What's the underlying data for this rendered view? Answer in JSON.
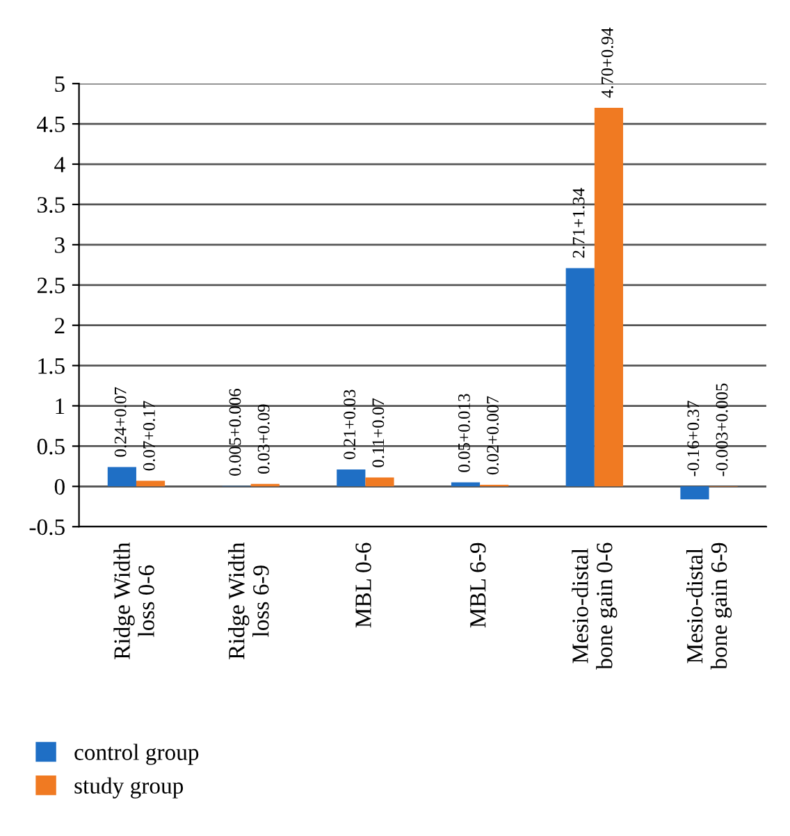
{
  "chart_data": {
    "type": "bar",
    "categories": [
      "Ridge Width\nloss 0-6",
      "Ridge Width\nloss 6-9",
      "MBL 0-6",
      "MBL 6-9",
      "Mesio-distal\nbone gain 0-6",
      "Mesio-distal\nbone gain 6-9"
    ],
    "series": [
      {
        "name": "control group",
        "color": "#1f6fc5",
        "values": [
          0.24,
          0.005,
          0.21,
          0.05,
          2.71,
          -0.16
        ],
        "value_labels": [
          "0.24+0.07",
          "0.005+0.006",
          "0.21+0.03",
          "0.05+0.013",
          "2.71+1.34",
          "-0.16+0.37"
        ]
      },
      {
        "name": "study group",
        "color": "#f07a22",
        "values": [
          0.07,
          0.03,
          0.11,
          0.02,
          4.7,
          -0.003
        ],
        "value_labels": [
          "0.07+0.17",
          "0.03+0.09",
          "0.11+0.07",
          "0.02+0.007",
          "4.70+0.94",
          "-0.003+0.005"
        ]
      }
    ],
    "ylim": [
      -0.5,
      5
    ],
    "yticks": [
      -0.5,
      0,
      0.5,
      1,
      1.5,
      2,
      2.5,
      3,
      3.5,
      4,
      4.5,
      5
    ],
    "grid": "y",
    "legend": "bottom left"
  }
}
